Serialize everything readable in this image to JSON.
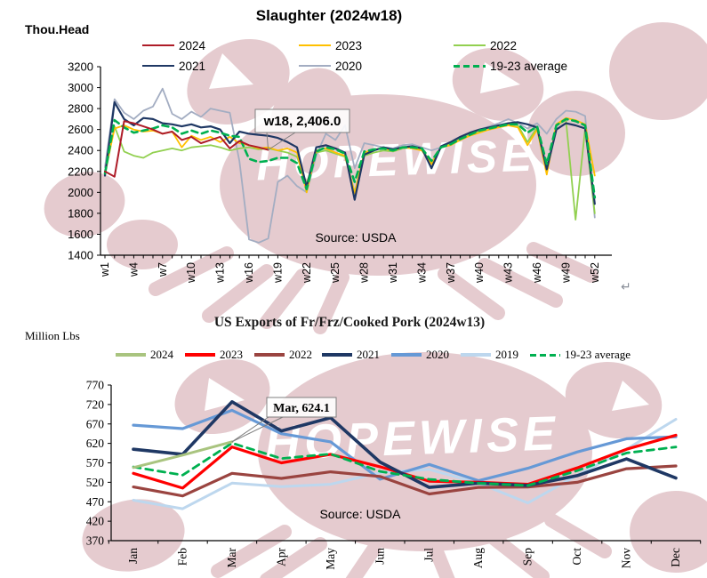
{
  "page": {
    "watermark_text": "HOPEWISE",
    "watermark_color": "#E5CBCF",
    "return_mark": "↵"
  },
  "chart_data": [
    {
      "id": "slaughter",
      "type": "line",
      "title": "Slaughter (2024w18)",
      "unit_label": "Thou.Head",
      "source_note": "Source:  USDA",
      "ylim": [
        1400,
        3200
      ],
      "y_ticks": [
        1400,
        1600,
        1800,
        2000,
        2200,
        2400,
        2600,
        2800,
        3000,
        3200
      ],
      "x_count": 52,
      "x_tick_labels": [
        "w1",
        "w4",
        "w7",
        "w10",
        "w13",
        "w16",
        "w19",
        "w22",
        "w25",
        "w28",
        "w31",
        "w34",
        "w37",
        "w40",
        "w43",
        "w46",
        "w49",
        "w52"
      ],
      "x_tick_label_step": 3,
      "grid": false,
      "legend_layout": [
        [
          "2024",
          "2023",
          "2022"
        ],
        [
          "2021",
          "2020",
          "19-23 average"
        ]
      ],
      "annotation": {
        "text": "w18, 2,406.0",
        "x_label": "w18",
        "x_index": 18,
        "value": 2406.0,
        "series": "2024"
      },
      "series": [
        {
          "name": "2020",
          "color": "#A3ADC2",
          "width": 1.8,
          "values": [
            2240,
            2890,
            2760,
            2700,
            2780,
            2820,
            2990,
            2750,
            2700,
            2770,
            2720,
            2800,
            2780,
            2760,
            2300,
            1550,
            1520,
            1560,
            2100,
            2160,
            2060,
            2000,
            2350,
            2560,
            2500,
            2640,
            2230,
            2470,
            2450,
            2430,
            2420,
            2450,
            2460,
            2430,
            2400,
            2430,
            2460,
            2510,
            2560,
            2600,
            2630,
            2660,
            2700,
            2660,
            2610,
            2660,
            2560,
            2700,
            2780,
            2770,
            2730,
            1760
          ]
        },
        {
          "name": "2022",
          "color": "#92D050",
          "width": 1.8,
          "values": [
            2160,
            2630,
            2390,
            2350,
            2330,
            2380,
            2400,
            2420,
            2400,
            2430,
            2440,
            2450,
            2430,
            2400,
            2420,
            2430,
            2410,
            2420,
            2400,
            2380,
            2340,
            2080,
            2380,
            2400,
            2370,
            2340,
            2000,
            2350,
            2380,
            2400,
            2390,
            2420,
            2430,
            2410,
            2280,
            2430,
            2460,
            2510,
            2550,
            2580,
            2600,
            2630,
            2650,
            2640,
            2480,
            2620,
            2190,
            2640,
            2690,
            1740,
            2610,
            1800
          ]
        },
        {
          "name": "2023",
          "color": "#FFC000",
          "width": 1.8,
          "values": [
            2190,
            2610,
            2640,
            2600,
            2580,
            2590,
            2560,
            2580,
            2430,
            2540,
            2500,
            2530,
            2480,
            2530,
            2470,
            2450,
            2420,
            2430,
            2400,
            2420,
            2380,
            2000,
            2400,
            2420,
            2380,
            2350,
            1990,
            2380,
            2410,
            2420,
            2400,
            2430,
            2420,
            2400,
            2270,
            2430,
            2450,
            2500,
            2540,
            2570,
            2600,
            2620,
            2640,
            2620,
            2450,
            2600,
            2170,
            2650,
            2710,
            2690,
            2650,
            2160
          ]
        },
        {
          "name": "2021",
          "color": "#1F3864",
          "width": 2.2,
          "values": [
            2160,
            2860,
            2700,
            2640,
            2710,
            2700,
            2660,
            2650,
            2630,
            2650,
            2620,
            2630,
            2600,
            2470,
            2580,
            2560,
            2550,
            2540,
            2520,
            2480,
            2430,
            2050,
            2430,
            2450,
            2420,
            2380,
            1930,
            2360,
            2400,
            2430,
            2410,
            2430,
            2440,
            2420,
            2230,
            2440,
            2480,
            2530,
            2570,
            2600,
            2620,
            2640,
            2660,
            2670,
            2650,
            2620,
            2220,
            2600,
            2660,
            2640,
            2610,
            1890
          ]
        },
        {
          "name": "19-23 average",
          "color": "#00B050",
          "width": 2.6,
          "dash": "7 5",
          "values": [
            2180,
            2690,
            2620,
            2570,
            2590,
            2610,
            2640,
            2620,
            2560,
            2590,
            2560,
            2590,
            2570,
            2540,
            2530,
            2320,
            2290,
            2300,
            2330,
            2330,
            2280,
            2030,
            2390,
            2430,
            2410,
            2370,
            2100,
            2390,
            2410,
            2420,
            2400,
            2430,
            2430,
            2420,
            2300,
            2430,
            2460,
            2510,
            2550,
            2590,
            2610,
            2630,
            2650,
            2650,
            2570,
            2630,
            2270,
            2640,
            2700,
            2680,
            2640,
            1950
          ]
        },
        {
          "name": "2024",
          "color": "#AE1C28",
          "width": 2.0,
          "values": [
            2200,
            2150,
            2680,
            2660,
            2630,
            2600,
            2560,
            2580,
            2500,
            2530,
            2470,
            2500,
            2530,
            2420,
            2490,
            2450,
            2430,
            2406
          ]
        }
      ]
    },
    {
      "id": "pork_exports",
      "type": "line",
      "title": "US Exports of Fr/Frz/Cooked Pork (2024w13)",
      "unit_label": "Million Lbs",
      "source_note": "Source:  USDA",
      "ylim": [
        370,
        770
      ],
      "y_ticks": [
        370,
        420,
        470,
        520,
        570,
        620,
        670,
        720,
        770
      ],
      "categories": [
        "Jan",
        "Feb",
        "Mar",
        "Apr",
        "May",
        "Jun",
        "Jul",
        "Aug",
        "Sep",
        "Oct",
        "Nov",
        "Dec"
      ],
      "grid": false,
      "legend_layout": [
        [
          "2024",
          "2023",
          "2022",
          "2021",
          "2020",
          "2019",
          "19-23 average"
        ]
      ],
      "annotation": {
        "text": "Mar, 624.1",
        "x_label": "Mar",
        "x_index": 3,
        "value": 624.1,
        "series": "2024"
      },
      "series": [
        {
          "name": "2019",
          "color": "#BDD7EE",
          "width": 3.0,
          "values": [
            474,
            452,
            518,
            509,
            515,
            545,
            553,
            518,
            467,
            538,
            605,
            682
          ]
        },
        {
          "name": "2020",
          "color": "#6699D6",
          "width": 3.2,
          "values": [
            667,
            658,
            705,
            645,
            624,
            528,
            566,
            524,
            556,
            598,
            632,
            637
          ]
        },
        {
          "name": "2022",
          "color": "#9A4440",
          "width": 3.2,
          "values": [
            508,
            485,
            543,
            530,
            547,
            535,
            490,
            507,
            508,
            520,
            555,
            562
          ]
        },
        {
          "name": "2023",
          "color": "#FF0000",
          "width": 3.2,
          "values": [
            543,
            505,
            611,
            570,
            592,
            560,
            523,
            520,
            515,
            557,
            605,
            641
          ]
        },
        {
          "name": "2021",
          "color": "#1F3864",
          "width": 3.6,
          "values": [
            605,
            592,
            727,
            652,
            686,
            572,
            507,
            518,
            512,
            537,
            580,
            531
          ]
        },
        {
          "name": "19-23 average",
          "color": "#00B050",
          "width": 2.8,
          "dash": "8 6",
          "values": [
            559.4,
            538.4,
            620.8,
            581.2,
            592.8,
            548.0,
            527.8,
            517.4,
            511.6,
            550.0,
            595.4,
            610.6
          ]
        },
        {
          "name": "2024",
          "color": "#A9C47F",
          "width": 3.0,
          "values": [
            558,
            590,
            624.1
          ]
        }
      ]
    }
  ]
}
